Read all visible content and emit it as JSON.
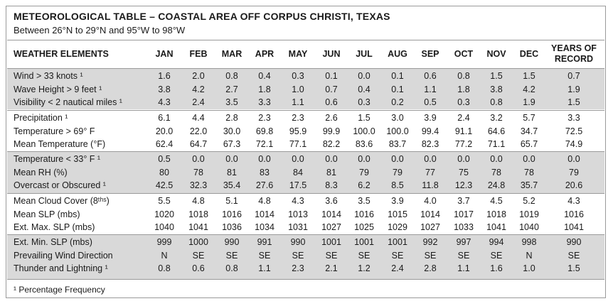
{
  "title": "METEOROLOGICAL TABLE – COASTAL AREA OFF CORPUS CHRISTI, TEXAS",
  "subtitle": "Between 26°N to 29°N and 95°W to 98°W",
  "header": {
    "element": "WEATHER ELEMENTS",
    "months": [
      "JAN",
      "FEB",
      "MAR",
      "APR",
      "MAY",
      "JUN",
      "JUL",
      "AUG",
      "SEP",
      "OCT",
      "NOV",
      "DEC"
    ],
    "years_line1": "YEARS OF",
    "years_line2": "RECORD"
  },
  "groups": [
    {
      "shaded": true,
      "rows": [
        {
          "label": "Wind > 33 knots ¹",
          "values": [
            "1.6",
            "2.0",
            "0.8",
            "0.4",
            "0.3",
            "0.1",
            "0.0",
            "0.1",
            "0.6",
            "0.8",
            "1.5",
            "1.5",
            "0.7"
          ]
        },
        {
          "label": "Wave Height > 9 feet ¹",
          "values": [
            "3.8",
            "4.2",
            "2.7",
            "1.8",
            "1.0",
            "0.7",
            "0.4",
            "0.1",
            "1.1",
            "1.8",
            "3.8",
            "4.2",
            "1.9"
          ]
        },
        {
          "label": "Visibility < 2 nautical miles ¹",
          "values": [
            "4.3",
            "2.4",
            "3.5",
            "3.3",
            "1.1",
            "0.6",
            "0.3",
            "0.2",
            "0.5",
            "0.3",
            "0.8",
            "1.9",
            "1.5"
          ]
        }
      ]
    },
    {
      "shaded": false,
      "rows": [
        {
          "label": "Precipitation ¹",
          "values": [
            "6.1",
            "4.4",
            "2.8",
            "2.3",
            "2.3",
            "2.6",
            "1.5",
            "3.0",
            "3.9",
            "2.4",
            "3.2",
            "5.7",
            "3.3"
          ]
        },
        {
          "label": "Temperature > 69° F",
          "values": [
            "20.0",
            "22.0",
            "30.0",
            "69.8",
            "95.9",
            "99.9",
            "100.0",
            "100.0",
            "99.4",
            "91.1",
            "64.6",
            "34.7",
            "72.5"
          ]
        },
        {
          "label": "Mean Temperature (°F)",
          "values": [
            "62.4",
            "64.7",
            "67.3",
            "72.1",
            "77.1",
            "82.2",
            "83.6",
            "83.7",
            "82.3",
            "77.2",
            "71.1",
            "65.7",
            "74.9"
          ]
        }
      ]
    },
    {
      "shaded": true,
      "rows": [
        {
          "label": "Temperature < 33° F ¹",
          "values": [
            "0.5",
            "0.0",
            "0.0",
            "0.0",
            "0.0",
            "0.0",
            "0.0",
            "0.0",
            "0.0",
            "0.0",
            "0.0",
            "0.0",
            "0.0"
          ]
        },
        {
          "label": "Mean RH (%)",
          "values": [
            "80",
            "78",
            "81",
            "83",
            "84",
            "81",
            "79",
            "79",
            "77",
            "75",
            "78",
            "78",
            "79"
          ]
        },
        {
          "label": "Overcast or Obscured ¹",
          "values": [
            "42.5",
            "32.3",
            "35.4",
            "27.6",
            "17.5",
            "8.3",
            "6.2",
            "8.5",
            "11.8",
            "12.3",
            "24.8",
            "35.7",
            "20.6"
          ]
        }
      ]
    },
    {
      "shaded": false,
      "rows": [
        {
          "label": "Mean Cloud Cover (8ᵗʰˢ)",
          "values": [
            "5.5",
            "4.8",
            "5.1",
            "4.8",
            "4.3",
            "3.6",
            "3.5",
            "3.9",
            "4.0",
            "3.7",
            "4.5",
            "5.2",
            "4.3"
          ]
        },
        {
          "label": "Mean SLP (mbs)",
          "values": [
            "1020",
            "1018",
            "1016",
            "1014",
            "1013",
            "1014",
            "1016",
            "1015",
            "1014",
            "1017",
            "1018",
            "1019",
            "1016"
          ]
        },
        {
          "label": "Ext. Max. SLP (mbs)",
          "values": [
            "1040",
            "1041",
            "1036",
            "1034",
            "1031",
            "1027",
            "1025",
            "1029",
            "1027",
            "1033",
            "1041",
            "1040",
            "1041"
          ]
        }
      ]
    },
    {
      "shaded": true,
      "rows": [
        {
          "label": "Ext. Min. SLP (mbs)",
          "values": [
            "999",
            "1000",
            "990",
            "991",
            "990",
            "1001",
            "1001",
            "1001",
            "992",
            "997",
            "994",
            "998",
            "990"
          ]
        },
        {
          "label": "Prevailing Wind Direction",
          "values": [
            "N",
            "SE",
            "SE",
            "SE",
            "SE",
            "SE",
            "SE",
            "SE",
            "SE",
            "SE",
            "SE",
            "N",
            "SE"
          ]
        },
        {
          "label": "Thunder and Lightning ¹",
          "values": [
            "0.8",
            "0.6",
            "0.8",
            "1.1",
            "2.3",
            "2.1",
            "1.2",
            "2.4",
            "2.8",
            "1.1",
            "1.6",
            "1.0",
            "1.5"
          ]
        }
      ]
    }
  ],
  "footnote": "¹ Percentage Frequency"
}
